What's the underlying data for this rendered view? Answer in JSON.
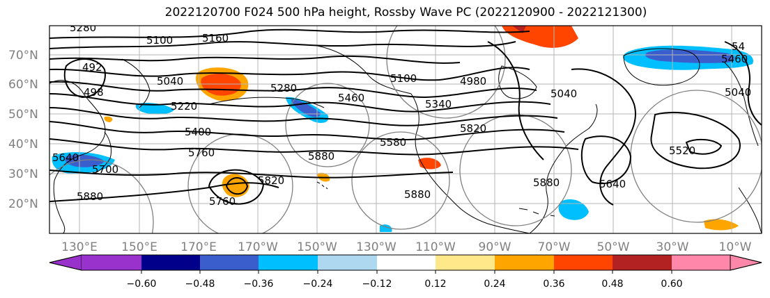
{
  "title": "2022120700 F024 500 hPa height, Rossby Wave PC (2022120900 - 2022121300)",
  "lat_labels": [
    "70°N",
    "60°N",
    "50°N",
    "40°N",
    "30°N",
    "20°N"
  ],
  "lon_labels": [
    "130°E",
    "150°E",
    "170°E",
    "170°W",
    "150°W",
    "130°W",
    "110°W",
    "90°W",
    "70°W",
    "50°W",
    "30°W",
    "10°W"
  ],
  "colorbar": {
    "colors": [
      "#9932cc",
      "#00008b",
      "#3a5fcd",
      "#00bfff",
      "#add8f0",
      "#ffffff",
      "#ffe88a",
      "#ffa500",
      "#ff4500",
      "#b22222",
      "#ff88aa"
    ],
    "under_color": "#9932cc",
    "over_color": "#ff88aa",
    "tick_labels": [
      "−0.60",
      "−0.48",
      "−0.36",
      "−0.24",
      "−0.12",
      "0.12",
      "0.24",
      "0.36",
      "0.48",
      "0.60"
    ]
  },
  "contour_labels": [
    "5280",
    "5100",
    "5160",
    "492",
    "5040",
    "498",
    "5220",
    "5280",
    "5400",
    "5460",
    "5760",
    "5640",
    "5700",
    "5880",
    "5820",
    "5760",
    "5880",
    "5100",
    "4980",
    "5340",
    "5040",
    "5580",
    "5880",
    "5820",
    "5880",
    "5640",
    "5520",
    "5460",
    "5040",
    "54"
  ]
}
